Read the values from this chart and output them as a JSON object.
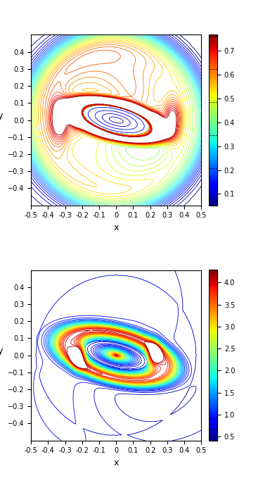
{
  "xlabel": "x",
  "ylabel": "y",
  "xlim": [
    -0.5,
    0.5
  ],
  "ylim": [
    -0.5,
    0.5
  ],
  "plot1_vmin": 0.05,
  "plot1_vmax": 0.77,
  "plot1_nlevels": 35,
  "plot1_cbar_ticks": [
    0.1,
    0.2,
    0.3,
    0.4,
    0.5,
    0.6,
    0.7
  ],
  "plot1_cbar_min": 0.05,
  "plot1_cbar_max": 0.77,
  "plot2_vmin": 0.4,
  "plot2_vmax": 4.3,
  "plot2_nlevels": 35,
  "plot2_cbar_ticks": [
    0.5,
    1.0,
    1.5,
    2.0,
    2.5,
    3.0,
    3.5,
    4.0
  ],
  "plot2_cbar_min": 0.4,
  "plot2_cbar_max": 4.3,
  "colormap": "jet",
  "figsize": [
    3.84,
    6.96
  ],
  "dpi": 100,
  "xtick_labels": [
    "-0.5",
    "-0.4",
    "-0.3",
    "-0.2",
    "-0.1",
    "0",
    "0.1",
    "0.2",
    "0.3",
    "0.4",
    "0.5"
  ],
  "xtick_vals": [
    -0.5,
    -0.4,
    -0.3,
    -0.2,
    -0.1,
    0.0,
    0.1,
    0.2,
    0.3,
    0.4,
    0.5
  ],
  "ytick_vals": [
    -0.4,
    -0.3,
    -0.2,
    -0.1,
    0.0,
    0.1,
    0.2,
    0.3,
    0.4
  ]
}
